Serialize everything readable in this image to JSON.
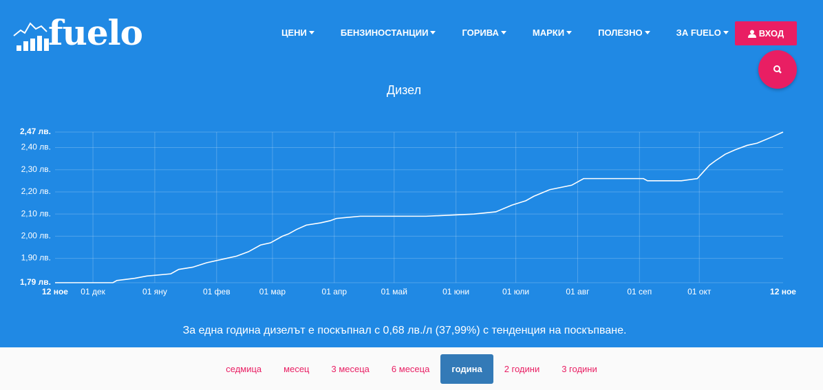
{
  "logo": "fuelo",
  "nav": [
    "ЦЕНИ",
    "БЕНЗИНОСТАНЦИИ",
    "ГОРИВА",
    "МАРКИ",
    "ПОЛЕЗНО",
    "ЗА FUELO"
  ],
  "login": "ВХОД",
  "chart_data": {
    "type": "line",
    "title": "Дизел",
    "x": [
      "11-12",
      "12-11",
      "12-13",
      "12-22",
      "12-28",
      "01-09",
      "01-13",
      "01-20",
      "01-27",
      "02-06",
      "02-11",
      "02-14",
      "02-17",
      "02-23",
      "02-28",
      "03-06",
      "03-09",
      "03-13",
      "03-18",
      "03-25",
      "03-30",
      "04-02",
      "04-14",
      "05-17",
      "06-10",
      "06-21",
      "06-29",
      "07-06",
      "07-10",
      "07-18",
      "07-29",
      "08-04",
      "09-03",
      "09-05",
      "09-22",
      "09-30",
      "10-02",
      "10-06",
      "10-09",
      "10-14",
      "10-19",
      "10-25",
      "10-30",
      "11-07",
      "11-12"
    ],
    "series": [
      {
        "color": "#ffffff",
        "values": [
          1.79,
          1.79,
          1.8,
          1.81,
          1.82,
          1.83,
          1.85,
          1.86,
          1.88,
          1.9,
          1.91,
          1.92,
          1.93,
          1.96,
          1.97,
          2.0,
          2.01,
          2.03,
          2.05,
          2.06,
          2.07,
          2.08,
          2.09,
          2.09,
          2.1,
          2.11,
          2.14,
          2.16,
          2.18,
          2.21,
          2.23,
          2.26,
          2.26,
          2.25,
          2.25,
          2.26,
          2.28,
          2.32,
          2.34,
          2.37,
          2.39,
          2.41,
          2.42,
          2.45,
          2.47
        ]
      }
    ],
    "xlim": [
      "11-12",
      "11-12"
    ],
    "xticks": [
      {
        "value": "11-12",
        "label": "12 ное"
      },
      {
        "value": "12-01",
        "label": "01 дек"
      },
      {
        "value": "01-01",
        "label": "01 яну"
      },
      {
        "value": "02-01",
        "label": "01 фев"
      },
      {
        "value": "03-01",
        "label": "01 мар"
      },
      {
        "value": "04-01",
        "label": "01 апр"
      },
      {
        "value": "05-01",
        "label": "01 май"
      },
      {
        "value": "06-01",
        "label": "01 юни"
      },
      {
        "value": "07-01",
        "label": "01 юли"
      },
      {
        "value": "08-01",
        "label": "01 авг"
      },
      {
        "value": "09-01",
        "label": "01 сеп"
      },
      {
        "value": "10-01",
        "label": "01 окт"
      },
      {
        "value": "11-12",
        "label": "12 ное"
      }
    ],
    "ylim": [
      1.79,
      2.47
    ],
    "yticks": [
      {
        "value": 1.79,
        "label": "1,79 лв."
      },
      {
        "value": 1.9,
        "label": "1,90 лв."
      },
      {
        "value": 2.0,
        "label": "2,00 лв."
      },
      {
        "value": 2.1,
        "label": "2,10 лв."
      },
      {
        "value": 2.2,
        "label": "2,20 лв."
      },
      {
        "value": 2.3,
        "label": "2,30 лв."
      },
      {
        "value": 2.4,
        "label": "2,40 лв."
      },
      {
        "value": 2.47,
        "label": "2,47 лв."
      }
    ],
    "grid": true
  },
  "summary": "За една година дизелът е поскъпнал с 0,68 лв./л (37,99%) с тенденция на поскъпване.",
  "periods": [
    {
      "label": "седмица"
    },
    {
      "label": "месец"
    },
    {
      "label": "3 месеца"
    },
    {
      "label": "6 месеца"
    },
    {
      "label": "година",
      "active": true
    },
    {
      "label": "2 години"
    },
    {
      "label": "3 години"
    }
  ]
}
